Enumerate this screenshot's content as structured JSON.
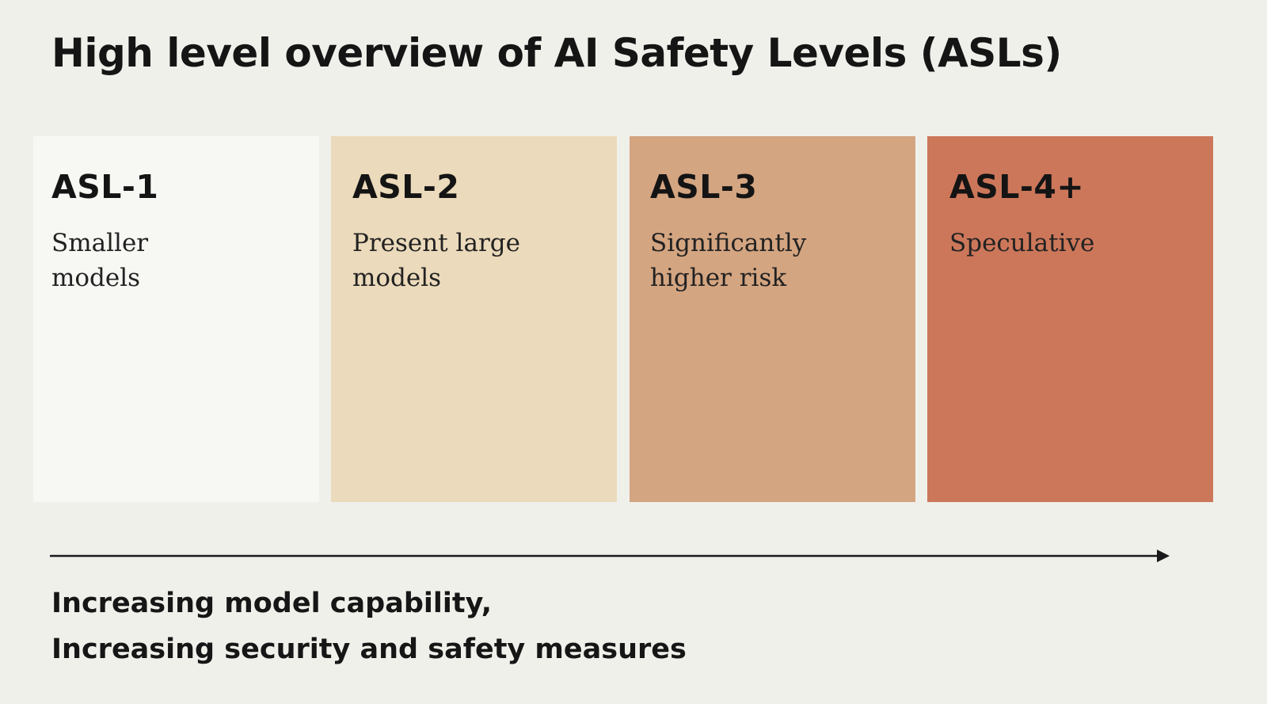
{
  "title": "High level overview of AI Safety Levels (ASLs)",
  "levels": [
    {
      "label": "ASL-1",
      "desc": "Smaller models",
      "color": "#f7f7f4"
    },
    {
      "label": "ASL-2",
      "desc": "Present large models",
      "color": "#ebdabb"
    },
    {
      "label": "ASL-3",
      "desc": "Significantly higher risk",
      "color": "#d4a581"
    },
    {
      "label": "ASL-4+",
      "desc": "Speculative",
      "color": "#cc775a"
    }
  ],
  "footer": {
    "line1": "Increasing model capability,",
    "line2": "Increasing security and safety measures"
  }
}
